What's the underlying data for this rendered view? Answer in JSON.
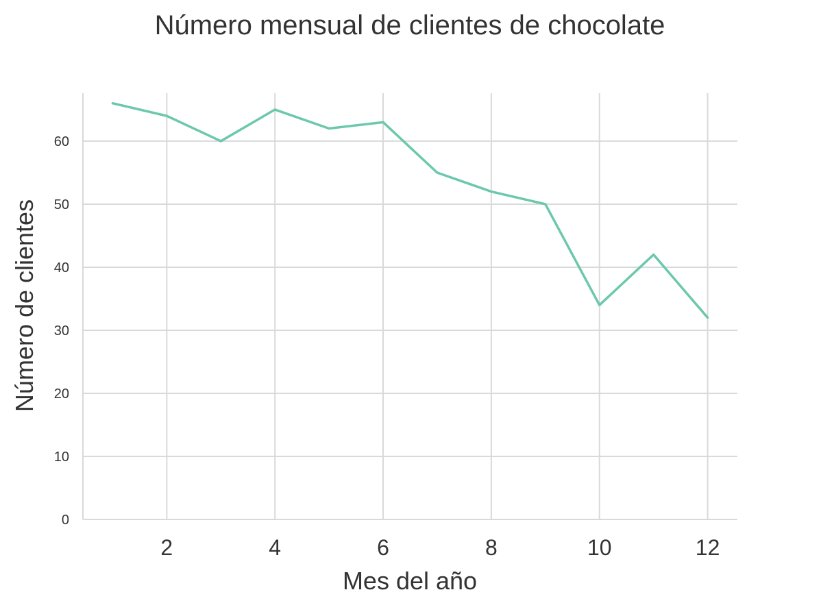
{
  "chart_data": {
    "type": "line",
    "title": "Número mensual de clientes de chocolate",
    "xlabel": "Mes del año",
    "ylabel": "Número de clientes",
    "x": [
      1,
      2,
      3,
      4,
      5,
      6,
      7,
      8,
      9,
      10,
      11,
      12
    ],
    "series": [
      {
        "values": [
          66,
          64,
          60,
          65,
          62,
          63,
          55,
          52,
          50,
          34,
          42,
          32
        ]
      }
    ],
    "x_ticks": [
      "2",
      "4",
      "6",
      "8",
      "10",
      "12"
    ],
    "y_ticks": [
      "0",
      "10",
      "20",
      "30",
      "40",
      "50",
      "60"
    ],
    "xlim": [
      0.45,
      12.55
    ],
    "ylim": [
      0,
      67.6
    ],
    "grid": true,
    "colors": {
      "line": "#6cc8ad",
      "grid": "#d9d9d9",
      "text": "#333333"
    }
  }
}
